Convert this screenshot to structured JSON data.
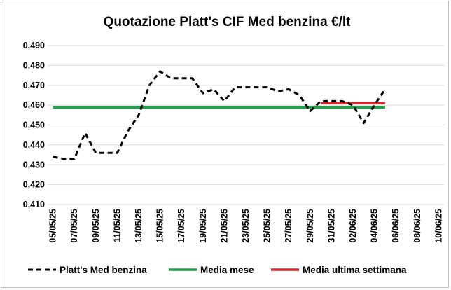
{
  "chart_data": {
    "type": "line",
    "title": "Quotazione Platt's CIF Med benzina €/lt",
    "xlabel": "",
    "ylabel": "",
    "ylim": [
      0.41,
      0.49
    ],
    "y_ticks": [
      "0,410",
      "0,420",
      "0,430",
      "0,440",
      "0,450",
      "0,460",
      "0,470",
      "0,480",
      "0,490"
    ],
    "x_range": [
      "2025-05-05",
      "2025-06-11"
    ],
    "x_tick_labels": [
      "05/05/25",
      "07/05/25",
      "09/05/25",
      "11/05/25",
      "13/05/25",
      "15/05/25",
      "17/05/25",
      "19/05/25",
      "21/05/25",
      "23/05/25",
      "25/05/25",
      "27/05/25",
      "29/05/25",
      "31/05/25",
      "02/06/25",
      "04/06/25",
      "06/06/25",
      "08/06/25",
      "10/06/25"
    ],
    "x_tick_dates": [
      "2025-05-05",
      "2025-05-07",
      "2025-05-09",
      "2025-05-11",
      "2025-05-13",
      "2025-05-15",
      "2025-05-17",
      "2025-05-19",
      "2025-05-21",
      "2025-05-23",
      "2025-05-25",
      "2025-05-27",
      "2025-05-29",
      "2025-05-31",
      "2025-06-02",
      "2025-06-04",
      "2025-06-06",
      "2025-06-08",
      "2025-06-10"
    ],
    "grid": "horizontal",
    "legend_position": "bottom",
    "series": [
      {
        "name": "Platt's Med benzina",
        "color": "#000000",
        "style": "dashed",
        "x": [
          "2025-05-05",
          "2025-05-06",
          "2025-05-07",
          "2025-05-08",
          "2025-05-09",
          "2025-05-10",
          "2025-05-11",
          "2025-05-12",
          "2025-05-13",
          "2025-05-14",
          "2025-05-15",
          "2025-05-16",
          "2025-05-17",
          "2025-05-18",
          "2025-05-19",
          "2025-05-20",
          "2025-05-21",
          "2025-05-22",
          "2025-05-23",
          "2025-05-24",
          "2025-05-25",
          "2025-05-26",
          "2025-05-27",
          "2025-05-28",
          "2025-05-29",
          "2025-05-30",
          "2025-05-31",
          "2025-06-01",
          "2025-06-02",
          "2025-06-03",
          "2025-06-04",
          "2025-06-05"
        ],
        "y": [
          0.434,
          0.433,
          0.433,
          0.446,
          0.436,
          0.436,
          0.436,
          0.447,
          0.455,
          0.47,
          0.477,
          0.4735,
          0.4735,
          0.4735,
          0.466,
          0.468,
          0.462,
          0.469,
          0.469,
          0.469,
          0.469,
          0.467,
          0.468,
          0.465,
          0.457,
          0.462,
          0.462,
          0.462,
          0.46,
          0.451,
          0.46,
          0.468
        ]
      },
      {
        "name": "Media mese",
        "color": "#1fa04a",
        "style": "solid",
        "x": [
          "2025-05-05",
          "2025-06-05"
        ],
        "y": [
          0.4588,
          0.4588
        ]
      },
      {
        "name": "Media ultima settimana",
        "color": "#d9262a",
        "style": "solid",
        "x": [
          "2025-05-30",
          "2025-06-05"
        ],
        "y": [
          0.461,
          0.461
        ]
      }
    ]
  }
}
